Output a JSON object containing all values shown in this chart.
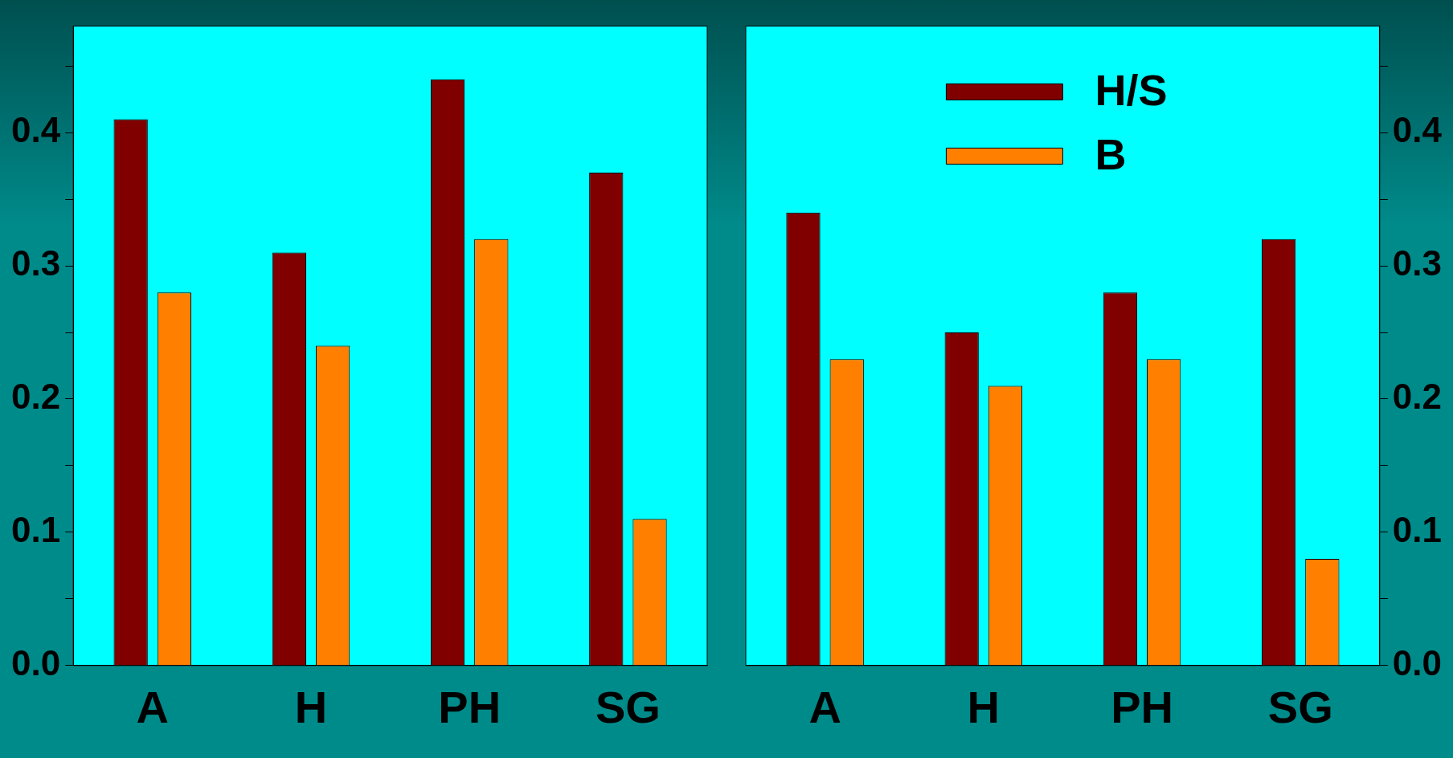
{
  "chart_data": [
    {
      "type": "bar",
      "categories": [
        "A",
        "H",
        "PH",
        "SG"
      ],
      "series": [
        {
          "color": "#800000",
          "values": [
            0.41,
            0.31,
            0.44,
            0.37
          ]
        },
        {
          "color": "#ff8000",
          "values": [
            0.28,
            0.24,
            0.32,
            0.11
          ]
        }
      ],
      "ylim": [
        0,
        0.48
      ],
      "yticks": [
        {
          "value": 0,
          "label": "0.0"
        },
        {
          "value": 0.05,
          "label": null
        },
        0.1,
        {
          "value": 0.15,
          "label": null
        },
        0.2,
        {
          "value": 0.25,
          "label": null
        },
        0.3,
        {
          "value": 0.35,
          "label": null
        },
        0.4,
        {
          "value": 0.45,
          "label": null
        }
      ],
      "grid": false,
      "legend": false
    },
    {
      "type": "bar",
      "categories": [
        "A",
        "H",
        "PH",
        "SG"
      ],
      "series": [
        {
          "name": "H/S",
          "color": "#800000",
          "values": [
            0.34,
            0.25,
            0.28,
            0.32
          ],
          "axis": "y2"
        },
        {
          "name": "B",
          "color": "#ff8000",
          "values": [
            0.23,
            0.21,
            0.23,
            0.08
          ],
          "axis": "y2"
        }
      ],
      "y2lim": [
        0,
        0.48
      ],
      "y2ticks": [
        {
          "value": 0,
          "label": "0.0"
        },
        {
          "value": 0.05,
          "label": null
        },
        0.1,
        {
          "value": 0.15,
          "label": null
        },
        0.2,
        {
          "value": 0.25,
          "label": null
        },
        0.3,
        {
          "value": 0.35,
          "label": null
        },
        0.4,
        {
          "value": 0.45,
          "label": null
        }
      ],
      "grid": false,
      "legend": "top"
    }
  ]
}
